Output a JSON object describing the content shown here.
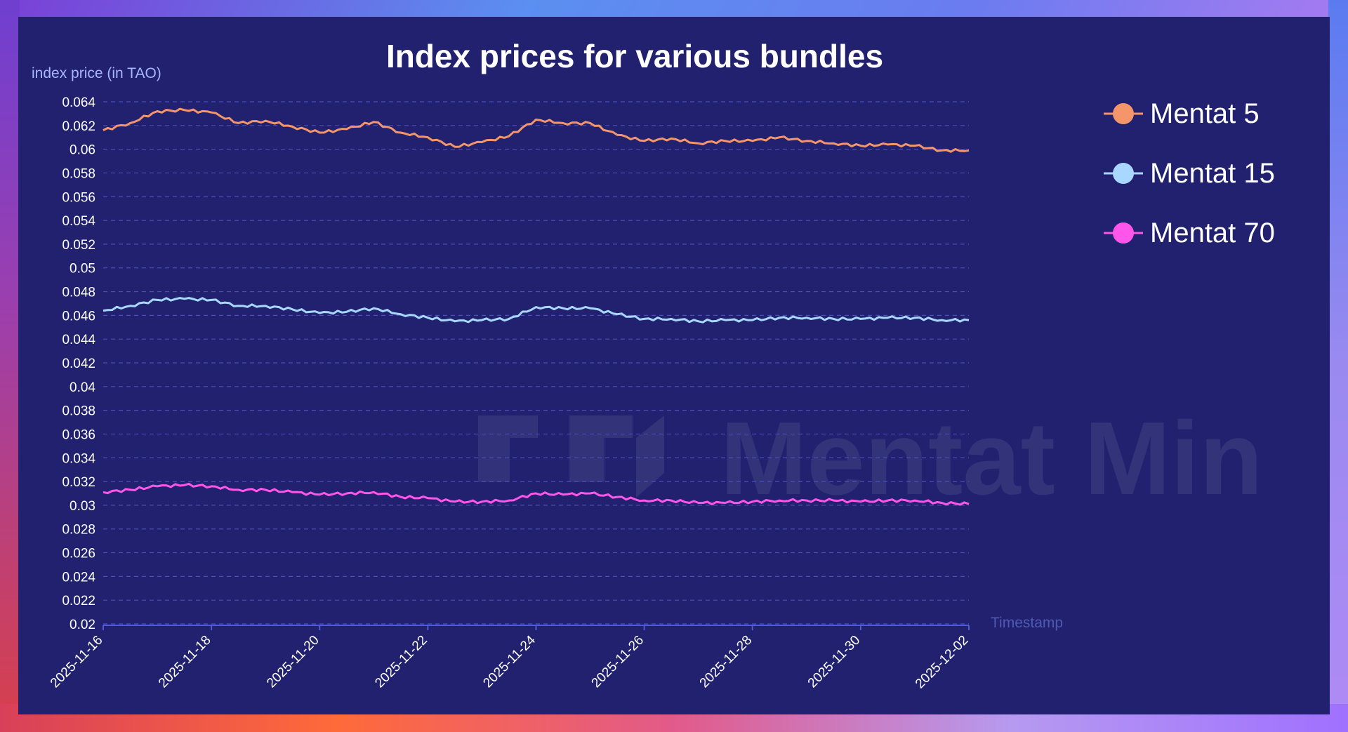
{
  "chart_data": {
    "type": "line",
    "title": "Index prices for various bundles",
    "ylabel": "index price (in TAO)",
    "xlabel": "Timestamp",
    "ylim": [
      0.02,
      0.064
    ],
    "yticks": [
      "0.064",
      "0.062",
      "0.06",
      "0.058",
      "0.056",
      "0.054",
      "0.052",
      "0.05",
      "0.048",
      "0.046",
      "0.044",
      "0.042",
      "0.04",
      "0.038",
      "0.036",
      "0.034",
      "0.032",
      "0.03",
      "0.028",
      "0.026",
      "0.024",
      "0.022",
      "0.02"
    ],
    "xticks": [
      "2025-11-16",
      "2025-11-18",
      "2025-11-20",
      "2025-11-22",
      "2025-11-24",
      "2025-11-26",
      "2025-11-28",
      "2025-11-30",
      "2025-12-02"
    ],
    "grid": true,
    "legend_position": "right",
    "watermark": "Mentat Min",
    "series": [
      {
        "name": "Mentat 5",
        "color": "#f4956a",
        "points": [
          [
            "2025-11-16",
            0.0616
          ],
          [
            "2025-11-16T12",
            0.0622
          ],
          [
            "2025-11-17",
            0.0632
          ],
          [
            "2025-11-17T12",
            0.0633
          ],
          [
            "2025-11-18",
            0.0631
          ],
          [
            "2025-11-18T12",
            0.0622
          ],
          [
            "2025-11-19",
            0.0624
          ],
          [
            "2025-11-19T12",
            0.0619
          ],
          [
            "2025-11-20",
            0.0614
          ],
          [
            "2025-11-20T12",
            0.0617
          ],
          [
            "2025-11-21",
            0.0623
          ],
          [
            "2025-11-21T12",
            0.0614
          ],
          [
            "2025-11-22",
            0.061
          ],
          [
            "2025-11-22T12",
            0.0602
          ],
          [
            "2025-11-23",
            0.0606
          ],
          [
            "2025-11-23T12",
            0.0611
          ],
          [
            "2025-11-24",
            0.0625
          ],
          [
            "2025-11-24T12",
            0.0622
          ],
          [
            "2025-11-25",
            0.0622
          ],
          [
            "2025-11-25T12",
            0.0612
          ],
          [
            "2025-11-26",
            0.0607
          ],
          [
            "2025-11-26T12",
            0.0609
          ],
          [
            "2025-11-27",
            0.0605
          ],
          [
            "2025-11-27T12",
            0.0607
          ],
          [
            "2025-11-28",
            0.0607
          ],
          [
            "2025-11-28T12",
            0.061
          ],
          [
            "2025-11-29",
            0.0607
          ],
          [
            "2025-11-29T12",
            0.0605
          ],
          [
            "2025-11-30",
            0.0603
          ],
          [
            "2025-11-30T12",
            0.0604
          ],
          [
            "2025-12-01",
            0.0603
          ],
          [
            "2025-12-01T12",
            0.0599
          ],
          [
            "2025-12-02",
            0.0599
          ]
        ]
      },
      {
        "name": "Mentat 15",
        "color": "#a8d8ff",
        "points": [
          [
            "2025-11-16",
            0.0464
          ],
          [
            "2025-11-16T12",
            0.0468
          ],
          [
            "2025-11-17",
            0.0473
          ],
          [
            "2025-11-17T12",
            0.0474
          ],
          [
            "2025-11-18",
            0.0473
          ],
          [
            "2025-11-18T12",
            0.0468
          ],
          [
            "2025-11-19",
            0.0468
          ],
          [
            "2025-11-19T12",
            0.0465
          ],
          [
            "2025-11-20",
            0.0462
          ],
          [
            "2025-11-20T12",
            0.0463
          ],
          [
            "2025-11-21",
            0.0466
          ],
          [
            "2025-11-21T12",
            0.0461
          ],
          [
            "2025-11-22",
            0.0458
          ],
          [
            "2025-11-22T12",
            0.0455
          ],
          [
            "2025-11-23",
            0.0456
          ],
          [
            "2025-11-23T12",
            0.0457
          ],
          [
            "2025-11-24",
            0.0467
          ],
          [
            "2025-11-24T12",
            0.0466
          ],
          [
            "2025-11-25",
            0.0466
          ],
          [
            "2025-11-25T12",
            0.0461
          ],
          [
            "2025-11-26",
            0.0457
          ],
          [
            "2025-11-26T12",
            0.0457
          ],
          [
            "2025-11-27",
            0.0455
          ],
          [
            "2025-11-27T12",
            0.0456
          ],
          [
            "2025-11-28",
            0.0456
          ],
          [
            "2025-11-28T12",
            0.0458
          ],
          [
            "2025-11-29",
            0.0458
          ],
          [
            "2025-11-29T12",
            0.0457
          ],
          [
            "2025-11-30",
            0.0457
          ],
          [
            "2025-11-30T12",
            0.0458
          ],
          [
            "2025-12-01",
            0.0458
          ],
          [
            "2025-12-01T12",
            0.0456
          ],
          [
            "2025-12-02",
            0.0456
          ]
        ]
      },
      {
        "name": "Mentat 70",
        "color": "#ff55e8",
        "points": [
          [
            "2025-11-16",
            0.0311
          ],
          [
            "2025-11-16T12",
            0.0313
          ],
          [
            "2025-11-17",
            0.0316
          ],
          [
            "2025-11-17T12",
            0.0317
          ],
          [
            "2025-11-18",
            0.0316
          ],
          [
            "2025-11-18T12",
            0.0313
          ],
          [
            "2025-11-19",
            0.0313
          ],
          [
            "2025-11-19T12",
            0.0311
          ],
          [
            "2025-11-20",
            0.0309
          ],
          [
            "2025-11-20T12",
            0.031
          ],
          [
            "2025-11-21",
            0.0311
          ],
          [
            "2025-11-21T12",
            0.0307
          ],
          [
            "2025-11-22",
            0.0306
          ],
          [
            "2025-11-22T12",
            0.0303
          ],
          [
            "2025-11-23",
            0.0303
          ],
          [
            "2025-11-23T12",
            0.0304
          ],
          [
            "2025-11-24",
            0.031
          ],
          [
            "2025-11-24T12",
            0.0309
          ],
          [
            "2025-11-25",
            0.031
          ],
          [
            "2025-11-25T12",
            0.0307
          ],
          [
            "2025-11-26",
            0.0304
          ],
          [
            "2025-11-26T12",
            0.0304
          ],
          [
            "2025-11-27",
            0.0302
          ],
          [
            "2025-11-27T12",
            0.0302
          ],
          [
            "2025-11-28",
            0.0303
          ],
          [
            "2025-11-28T12",
            0.0304
          ],
          [
            "2025-11-29",
            0.0304
          ],
          [
            "2025-11-29T12",
            0.0304
          ],
          [
            "2025-11-30",
            0.0303
          ],
          [
            "2025-11-30T12",
            0.0304
          ],
          [
            "2025-12-01",
            0.0304
          ],
          [
            "2025-12-01T12",
            0.0302
          ],
          [
            "2025-12-02",
            0.0301
          ]
        ]
      }
    ]
  }
}
